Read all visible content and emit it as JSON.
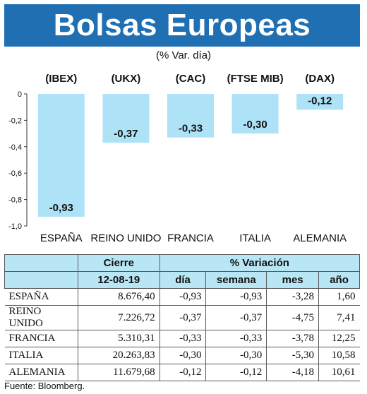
{
  "banner": {
    "title": "Bolsas Europeas"
  },
  "subtitle": "(% Var. día)",
  "colors": {
    "banner": "#1f6fb2",
    "bar": "#aee2f6",
    "header": "#b9e6f4"
  },
  "chart_data": {
    "type": "bar",
    "indices": [
      "(IBEX)",
      "(UKX)",
      "(CAC)",
      "(FTSE MIB)",
      "(DAX)"
    ],
    "categories": [
      "ESPAÑA",
      "REINO UNIDO",
      "FRANCIA",
      "ITALIA",
      "ALEMANIA"
    ],
    "values": [
      -0.93,
      -0.37,
      -0.33,
      -0.3,
      -0.12
    ],
    "value_labels": [
      "-0,93",
      "-0,37",
      "-0,33",
      "-0,30",
      "-0,12"
    ],
    "ylim": [
      -1.0,
      0
    ],
    "yticks": [
      0,
      -0.2,
      -0.4,
      -0.6,
      -0.8,
      -1.0
    ],
    "ytick_labels": [
      "0",
      "-0,2",
      "-0,4",
      "-0,6",
      "-0,8",
      "-1,0"
    ],
    "grid": false
  },
  "table": {
    "group_headers": {
      "close": "Cierre",
      "variation": "% Variación"
    },
    "columns": [
      "12-08-19",
      "día",
      "semana",
      "mes",
      "año"
    ],
    "rows": [
      {
        "name": "ESPAÑA",
        "close": "8.676,40",
        "dia": "-0,93",
        "semana": "-0,93",
        "mes": "-3,28",
        "ano": "1,60"
      },
      {
        "name": "REINO UNIDO",
        "close": "7.226,72",
        "dia": "-0,37",
        "semana": "-0,37",
        "mes": "-4,75",
        "ano": "7,41"
      },
      {
        "name": "FRANCIA",
        "close": "5.310,31",
        "dia": "-0,33",
        "semana": "-0,33",
        "mes": "-3,78",
        "ano": "12,25"
      },
      {
        "name": "ITALIA",
        "close": "20.263,83",
        "dia": "-0,30",
        "semana": "-0,30",
        "mes": "-5,30",
        "ano": "10,58"
      },
      {
        "name": "ALEMANIA",
        "close": "11.679,68",
        "dia": "-0,12",
        "semana": "-0,12",
        "mes": "-4,18",
        "ano": "10,61"
      }
    ]
  },
  "source": "Fuente: Bloomberg."
}
